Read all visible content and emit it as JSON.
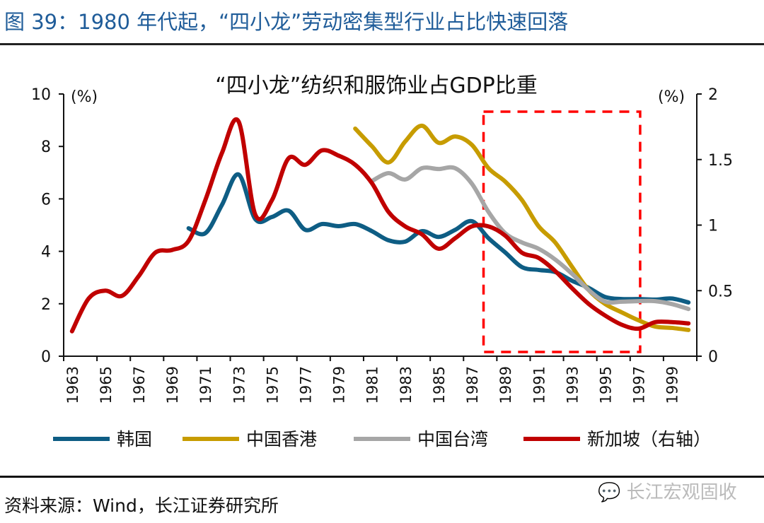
{
  "figure_title": "图 39：1980 年代起，“四小龙”劳动密集型行业占比快速回落",
  "source": "资料来源：Wind，长江证券研究所",
  "watermark": "长江宏观固收",
  "chart_data": {
    "type": "line",
    "title": "“四小龙”纺织和服饰业占GDP比重",
    "y_left_label": "(%)",
    "y_right_label": "(%)",
    "y_left_lim": [
      0,
      10
    ],
    "y_left_ticks": [
      "0",
      "2",
      "4",
      "6",
      "8",
      "10"
    ],
    "y_right_lim": [
      0,
      2
    ],
    "y_right_ticks": [
      "0",
      "0.5",
      "1",
      "1.5",
      "2"
    ],
    "x": [
      1963,
      1964,
      1965,
      1966,
      1967,
      1968,
      1969,
      1970,
      1971,
      1972,
      1973,
      1974,
      1975,
      1976,
      1977,
      1978,
      1979,
      1980,
      1981,
      1982,
      1983,
      1984,
      1985,
      1986,
      1987,
      1988,
      1989,
      1990,
      1991,
      1992,
      1993,
      1994,
      1995,
      1996,
      1997,
      1998,
      1999,
      2000
    ],
    "x_tick_labels": [
      "1963",
      "1965",
      "1967",
      "1969",
      "1971",
      "1973",
      "1975",
      "1977",
      "1979",
      "1981",
      "1983",
      "1985",
      "1987",
      "1989",
      "1991",
      "1993",
      "1995",
      "1997",
      "1999"
    ],
    "grid": false,
    "legend_position": "bottom",
    "highlight_box": {
      "from": 1987.7,
      "to": 1997.1,
      "color": "#ff0000",
      "style": "dashed"
    },
    "series": [
      {
        "name": "韩国",
        "axis": "left",
        "color": "#0e5d84",
        "values": [
          null,
          null,
          null,
          null,
          null,
          null,
          null,
          4.88,
          4.69,
          5.77,
          6.93,
          5.23,
          5.31,
          5.55,
          4.82,
          5.04,
          4.96,
          5.04,
          4.77,
          4.42,
          4.37,
          4.77,
          4.55,
          4.82,
          5.15,
          4.5,
          3.96,
          3.4,
          3.29,
          3.21,
          2.88,
          2.61,
          2.26,
          2.18,
          2.18,
          2.16,
          2.2,
          2.05
        ]
      },
      {
        "name": "中国香港",
        "axis": "left",
        "color": "#c79c00",
        "values": [
          null,
          null,
          null,
          null,
          null,
          null,
          null,
          null,
          null,
          null,
          null,
          null,
          null,
          null,
          null,
          null,
          null,
          8.68,
          8.01,
          7.39,
          8.19,
          8.79,
          8.14,
          8.38,
          8.06,
          7.17,
          6.66,
          5.96,
          4.96,
          4.34,
          3.42,
          2.53,
          1.99,
          1.67,
          1.37,
          1.13,
          1.08,
          1.0
        ]
      },
      {
        "name": "中国台湾",
        "axis": "left",
        "color": "#a6a6a6",
        "values": [
          null,
          null,
          null,
          null,
          null,
          null,
          null,
          null,
          null,
          null,
          null,
          null,
          null,
          null,
          null,
          null,
          null,
          null,
          6.68,
          6.98,
          6.74,
          7.17,
          7.14,
          7.17,
          6.58,
          5.5,
          4.69,
          4.34,
          4.1,
          3.69,
          3.15,
          2.53,
          2.08,
          2.08,
          2.1,
          2.1,
          1.99,
          1.8
        ]
      },
      {
        "name": "新加坡（右轴）",
        "axis": "right",
        "color": "#c00000",
        "values": [
          0.19,
          0.44,
          0.5,
          0.46,
          0.61,
          0.79,
          0.81,
          0.88,
          1.19,
          1.55,
          1.79,
          1.08,
          1.19,
          1.51,
          1.46,
          1.57,
          1.53,
          1.46,
          1.32,
          1.1,
          0.99,
          0.93,
          0.82,
          0.9,
          0.99,
          0.99,
          0.92,
          0.79,
          0.75,
          0.65,
          0.52,
          0.4,
          0.31,
          0.24,
          0.21,
          0.26,
          0.26,
          0.25
        ]
      }
    ]
  }
}
